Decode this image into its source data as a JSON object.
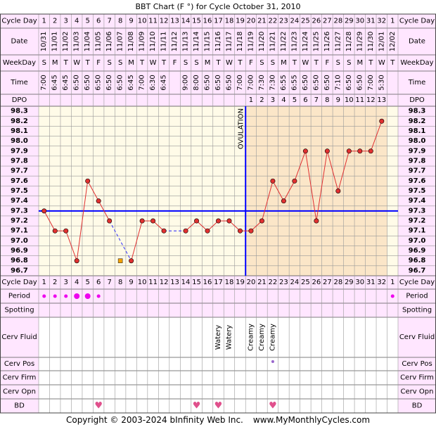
{
  "title": "BBT Chart (F °) for Cycle October 31, 2010",
  "copyright": "Copyright © 2003-2024 bInfinity Web Inc.",
  "site": "www.MyMonthlyCycles.com",
  "colors": {
    "pink_bg": "#FFE6FF",
    "cream_bg": "#FFFBE8",
    "luteal_bg": "#FBE6C8",
    "grid_minor": "#E6E0D0",
    "grid": "#999999",
    "coverline": "#0000FF",
    "ovulation": "#0000FF",
    "temp_line": "#E03030",
    "temp_point": "#E03030",
    "period_dot": "#EE00EE",
    "heart": "#E0508C",
    "cerv_pos_dot": "#9966CC"
  },
  "labels": {
    "cycle_day": "Cycle Day",
    "date": "Date",
    "weekday": "WeekDay",
    "time": "Time",
    "dpo": "DPO",
    "period": "Period",
    "spotting": "Spotting",
    "cerv_fluid": "Cerv Fluid",
    "cerv_pos": "Cerv Pos",
    "cerv_firm": "Cerv Firm",
    "cerv_opn": "Cerv Opn",
    "bd": "BD",
    "ovulation": "OVULATION"
  },
  "days": [
    "1",
    "2",
    "3",
    "4",
    "5",
    "6",
    "7",
    "8",
    "9",
    "10",
    "11",
    "12",
    "13",
    "14",
    "15",
    "16",
    "17",
    "18",
    "19",
    "20",
    "21",
    "22",
    "23",
    "24",
    "25",
    "26",
    "27",
    "28",
    "29",
    "30",
    "31",
    "32",
    "1"
  ],
  "dates": [
    "10/31",
    "11/01",
    "11/02",
    "11/03",
    "11/04",
    "11/05",
    "11/06",
    "11/07",
    "11/08",
    "11/09",
    "11/10",
    "11/11",
    "11/12",
    "11/13",
    "11/14",
    "11/15",
    "11/16",
    "11/17",
    "11/18",
    "11/19",
    "11/20",
    "11/21",
    "11/22",
    "11/23",
    "11/24",
    "11/25",
    "11/26",
    "11/27",
    "11/28",
    "11/29",
    "11/30",
    "12/01",
    "12/02"
  ],
  "weekdays": [
    "S",
    "M",
    "T",
    "W",
    "T",
    "F",
    "S",
    "S",
    "M",
    "T",
    "W",
    "T",
    "F",
    "S",
    "S",
    "M",
    "T",
    "W",
    "T",
    "F",
    "S",
    "S",
    "M",
    "T",
    "W",
    "T",
    "F",
    "S",
    "S",
    "M",
    "T",
    "W",
    "T"
  ],
  "times": [
    "7:00",
    "6:45",
    "6:45",
    "6:50",
    "6:50",
    "6:50",
    "6:50",
    "6:50",
    "6:45",
    "7:00",
    "6:30",
    "6:45",
    "",
    "9:00",
    "8:00",
    "6:50",
    "6:50",
    "6:50",
    "7:00",
    "7:00",
    "7:30",
    "7:30",
    "6:55",
    "6:55",
    "6:50",
    "6:50",
    "6:50",
    "7:10",
    "6:50",
    "6:50",
    "7:00",
    "5:30",
    ""
  ],
  "dpo": [
    "",
    "",
    "",
    "",
    "",
    "",
    "",
    "",
    "",
    "",
    "",
    "",
    "",
    "",
    "",
    "",
    "",
    "",
    "",
    "1",
    "2",
    "3",
    "4",
    "5",
    "6",
    "7",
    "8",
    "9",
    "10",
    "11",
    "12",
    "13",
    ""
  ],
  "chart_data": {
    "type": "line",
    "title": "BBT Chart (F °) for Cycle October 31, 2010",
    "xlabel": "Cycle Day",
    "ylabel": "",
    "ylim": [
      96.7,
      98.3
    ],
    "y_ticks": [
      "98.3",
      "98.2",
      "98.1",
      "98.0",
      "97.9",
      "97.8",
      "97.7",
      "97.6",
      "97.5",
      "97.4",
      "97.3",
      "97.2",
      "97.1",
      "97.0",
      "96.9",
      "96.8",
      "96.7"
    ],
    "x": [
      1,
      2,
      3,
      4,
      5,
      6,
      7,
      8,
      9,
      10,
      11,
      12,
      13,
      14,
      15,
      16,
      17,
      18,
      19,
      20,
      21,
      22,
      23,
      24,
      25,
      26,
      27,
      28,
      29,
      30,
      31,
      32,
      33
    ],
    "temperatures": [
      97.3,
      97.1,
      97.1,
      96.8,
      97.6,
      97.4,
      97.2,
      null,
      96.8,
      97.2,
      97.2,
      97.1,
      null,
      97.1,
      97.2,
      97.1,
      97.2,
      97.2,
      97.1,
      97.1,
      97.2,
      97.6,
      97.4,
      97.6,
      97.9,
      97.2,
      97.9,
      97.5,
      97.9,
      97.9,
      97.9,
      98.2,
      null
    ],
    "discarded_point": {
      "day": 8,
      "temp": 96.8
    },
    "coverline": 97.3,
    "ovulation_day": 19,
    "grid": true
  },
  "period": [
    "small",
    "small",
    "small",
    "large",
    "large",
    "small",
    "",
    "",
    "",
    "",
    "",
    "",
    "",
    "",
    "",
    "",
    "",
    "",
    "",
    "",
    "",
    "",
    "",
    "",
    "",
    "",
    "",
    "",
    "",
    "",
    "",
    "",
    "small"
  ],
  "cerv_fluid": [
    "",
    "",
    "",
    "",
    "",
    "",
    "",
    "",
    "",
    "",
    "",
    "",
    "",
    "",
    "",
    "",
    "Watery",
    "Watery",
    "",
    "Creamy",
    "Creamy",
    "Creamy",
    "",
    "",
    "",
    "",
    "",
    "",
    "",
    "",
    "",
    "",
    ""
  ],
  "cerv_pos_days": [
    22
  ],
  "bd_days": [
    6,
    15,
    17,
    22
  ],
  "heart_glyph": "♥"
}
